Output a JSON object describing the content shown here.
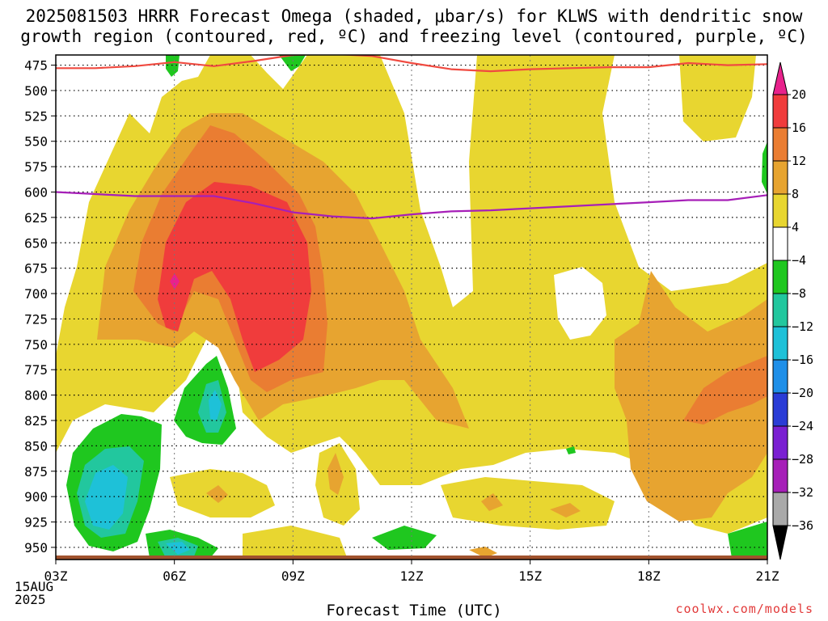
{
  "title": {
    "line1": "2025081503 HRRR Forecast Omega (shaded, μbar/s) for KLWS with dendritic snow",
    "line2": "growth region (contoured, red, ºC) and freezing level (contoured, purple, ºC)"
  },
  "xlabel": "Forecast Time (UTC)",
  "credit": "coolwx.com/models",
  "chart_data": {
    "type": "heatmap",
    "x_ticks": [
      "03Z",
      "06Z",
      "09Z",
      "12Z",
      "15Z",
      "18Z",
      "21Z"
    ],
    "x_first_label_extra": [
      "15AUG",
      "2025"
    ],
    "y_ticks": [
      "475",
      "500",
      "525",
      "550",
      "575",
      "600",
      "625",
      "650",
      "675",
      "700",
      "725",
      "750",
      "775",
      "800",
      "825",
      "850",
      "875",
      "900",
      "925",
      "950"
    ],
    "y_range_hpa": [
      465,
      962
    ],
    "x_range_hours": [
      3,
      21
    ],
    "grid": true,
    "colorbar": {
      "labels": [
        "20",
        "16",
        "12",
        "8",
        "4",
        "−4",
        "−8",
        "−12",
        "−16",
        "−20",
        "−24",
        "−28",
        "−32",
        "−36"
      ],
      "levels": [
        {
          "lo": 16,
          "hi": 20,
          "color": "#f03c3c"
        },
        {
          "lo": 12,
          "hi": 16,
          "color": "#ea7d32"
        },
        {
          "lo": 8,
          "hi": 12,
          "color": "#e7a430"
        },
        {
          "lo": 4,
          "hi": 8,
          "color": "#e8d630"
        },
        {
          "lo": -4,
          "hi": 4,
          "color": "#ffffff"
        },
        {
          "lo": -8,
          "hi": -4,
          "color": "#1fc71f"
        },
        {
          "lo": -12,
          "hi": -8,
          "color": "#22c79e"
        },
        {
          "lo": -16,
          "hi": -12,
          "color": "#1ec1d8"
        },
        {
          "lo": -20,
          "hi": -16,
          "color": "#1f8fe8"
        },
        {
          "lo": -24,
          "hi": -20,
          "color": "#2a3cd6"
        },
        {
          "lo": -28,
          "hi": -24,
          "color": "#7a1fd2"
        },
        {
          "lo": -32,
          "hi": -28,
          "color": "#a61fb8"
        },
        {
          "lo": -36,
          "hi": -32,
          "color": "#a9a9a9"
        }
      ],
      "top_arrow_color": "#e8228c",
      "bottom_arrow_color": "#000000"
    },
    "series": [
      {
        "color": "#f04a40",
        "x": [
          3,
          4,
          5,
          6,
          7,
          8,
          9,
          10,
          11,
          12,
          13,
          14,
          15,
          16,
          17,
          18,
          19,
          20,
          21
        ],
        "y": [
          478,
          478,
          476,
          472,
          476,
          471,
          465,
          464,
          466,
          473,
          479,
          481,
          479,
          478,
          477,
          477,
          473,
          475,
          474
        ]
      },
      {
        "color": "#a61fb8",
        "x": [
          3,
          4,
          5,
          6,
          7,
          8,
          9,
          10,
          11,
          12,
          13,
          14,
          15,
          16,
          17,
          18,
          19,
          20,
          21
        ],
        "y": [
          600,
          602,
          604,
          604,
          604,
          611,
          620,
          624,
          626,
          622,
          619,
          618,
          616,
          614,
          612,
          610,
          608,
          608,
          603
        ]
      }
    ]
  }
}
